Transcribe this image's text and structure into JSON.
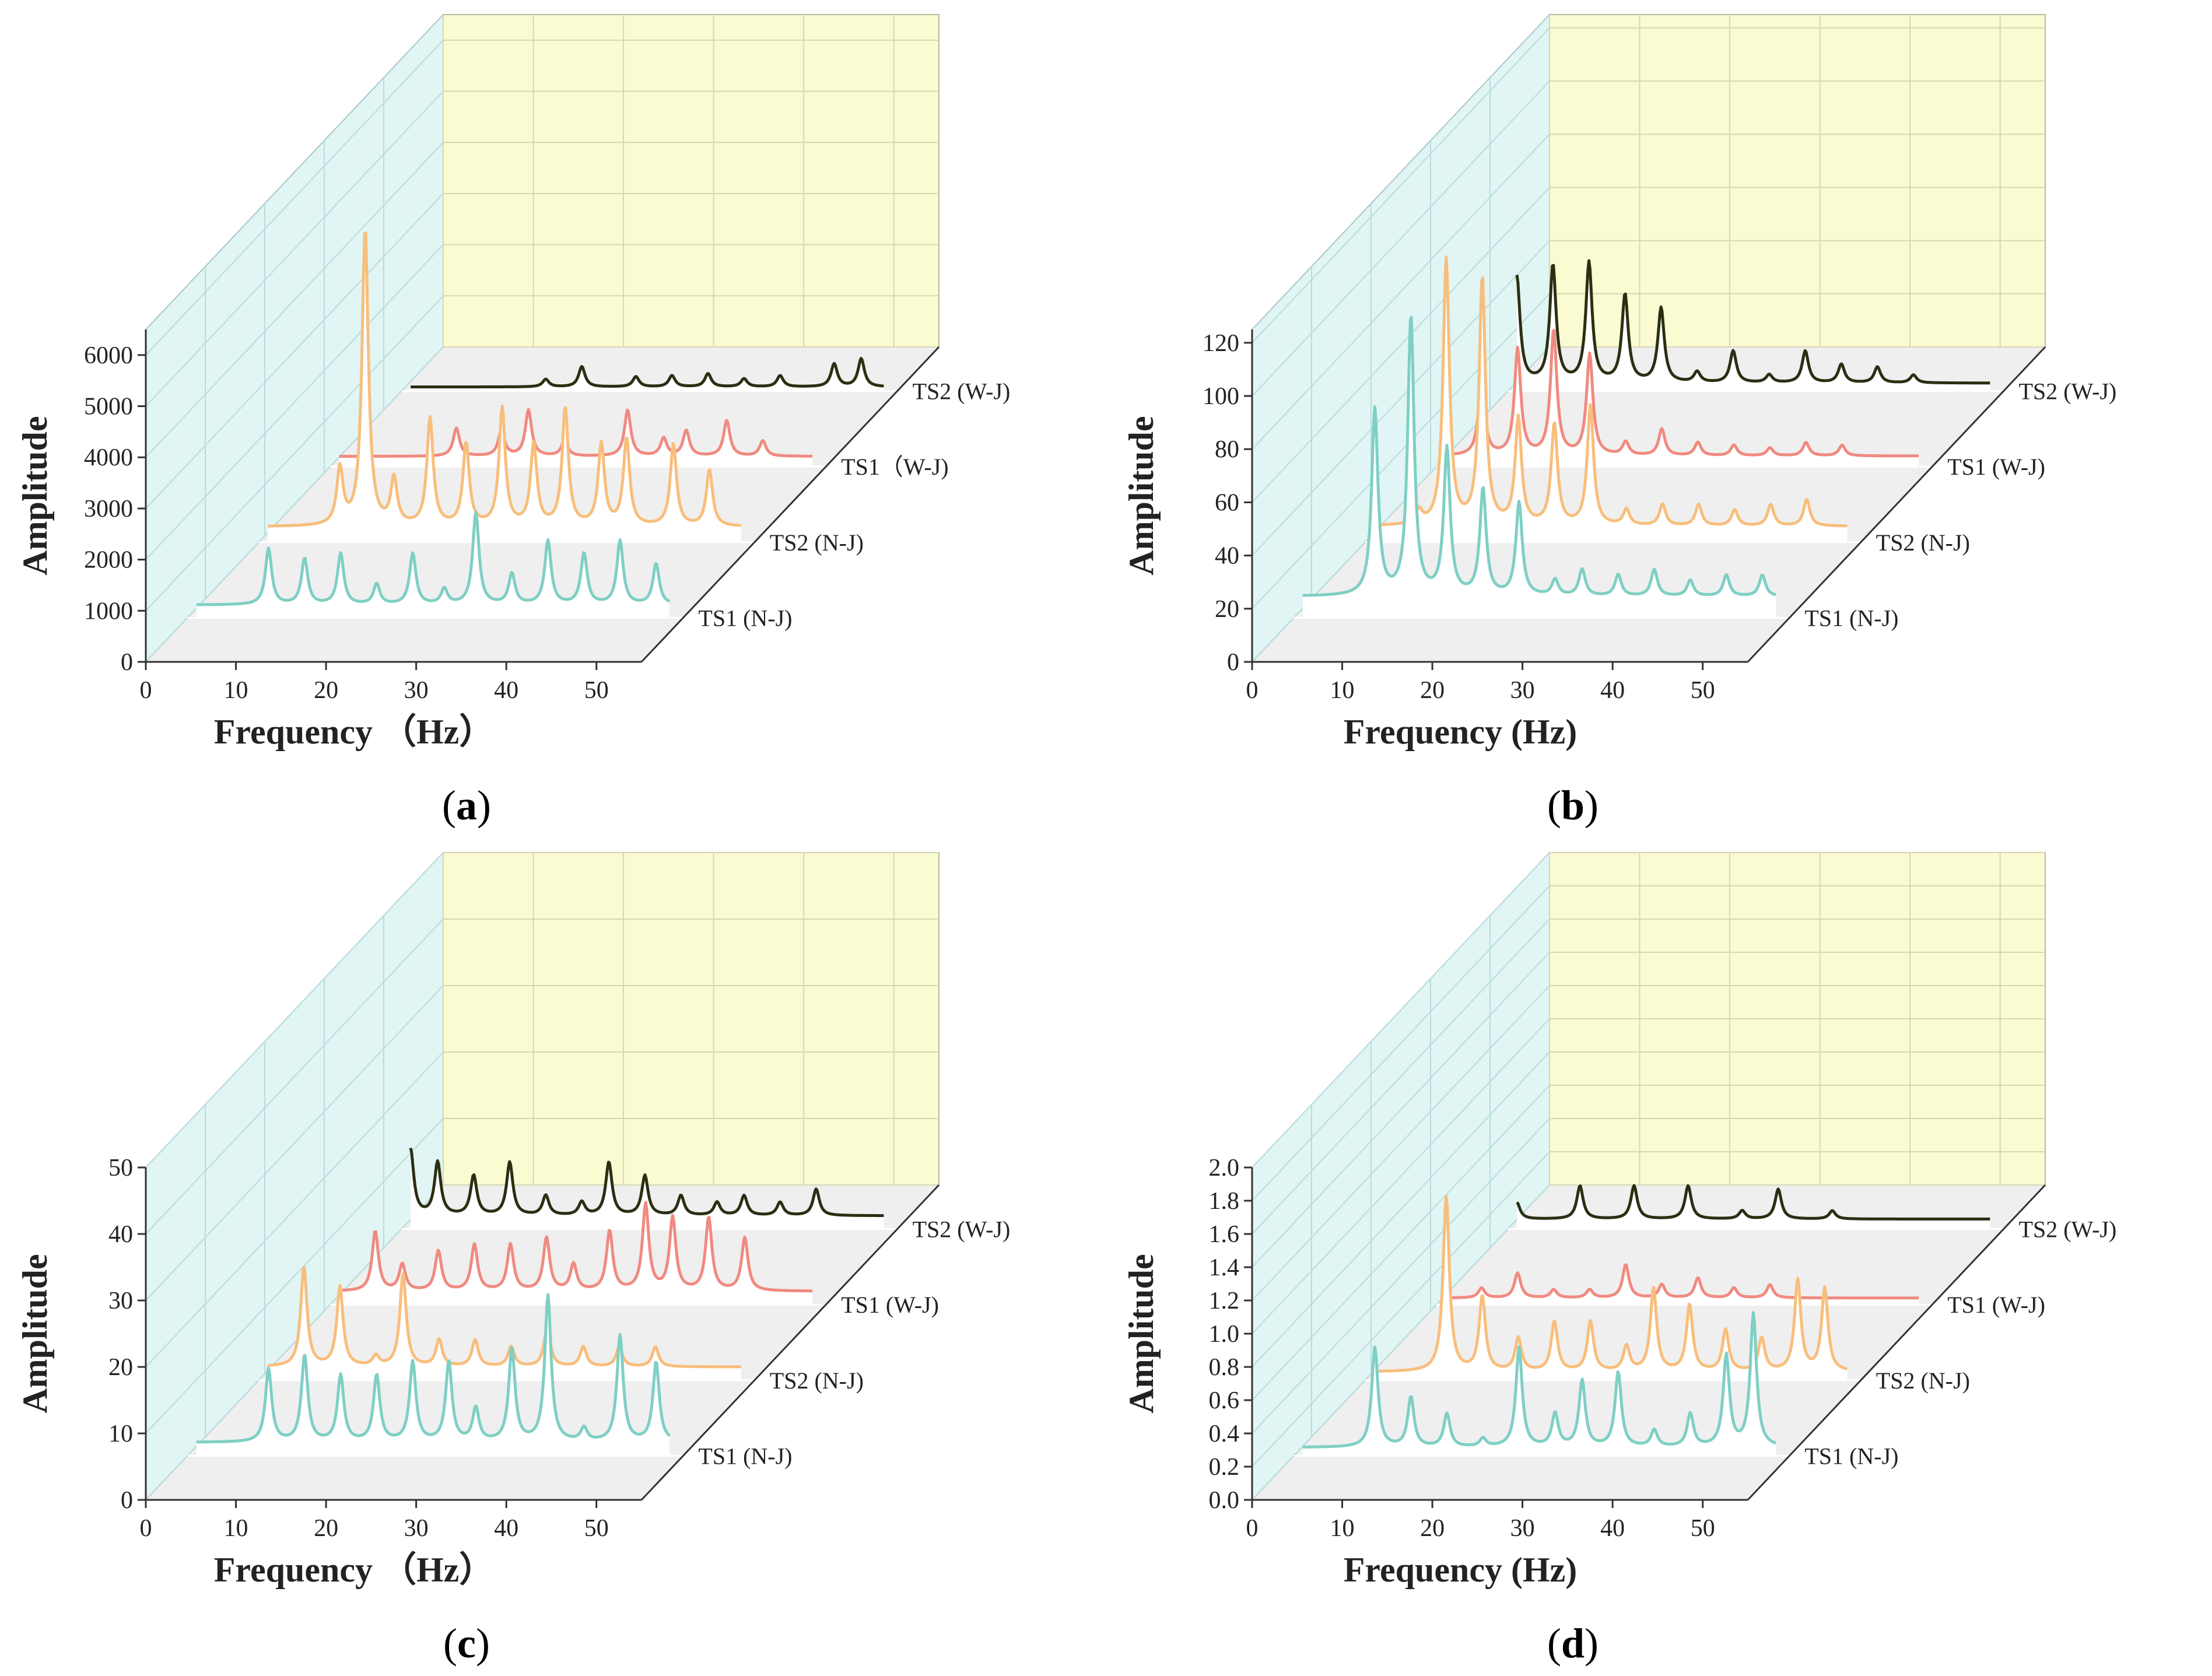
{
  "chart_data": [
    {
      "type": "line",
      "panel_label": "a",
      "xlabel": "Frequency （Hz）",
      "ylabel": "Amplitude",
      "xticks": [
        0,
        10,
        20,
        30,
        40,
        50
      ],
      "yticks": [
        "0",
        "1000",
        "2000",
        "3000",
        "4000",
        "5000",
        "6000"
      ],
      "xlim": [
        0,
        55
      ],
      "ylim": [
        0,
        6500
      ],
      "series_labels": [
        "TS1 (N-J)",
        "TS2 (N-J)",
        "TS1（W-J)",
        "TS2 (W-J)"
      ],
      "series": [
        {
          "name": "TS1 (N-J)",
          "color": "#7ecfc4",
          "baseline": 250,
          "peaks": [
            [
              9,
              1100
            ],
            [
              13,
              900
            ],
            [
              17,
              1000
            ],
            [
              21,
              400
            ],
            [
              25,
              1000
            ],
            [
              28.5,
              300
            ],
            [
              32,
              1800
            ],
            [
              36,
              600
            ],
            [
              40,
              1250
            ],
            [
              44,
              1000
            ],
            [
              48,
              1250
            ],
            [
              52,
              800
            ]
          ]
        },
        {
          "name": "TS2 (N-J)",
          "color": "#f8be7c",
          "baseline": 300,
          "peaks": [
            [
              9,
              1100
            ],
            [
              11.8,
              5800
            ],
            [
              15,
              900
            ],
            [
              19,
              2100
            ],
            [
              23,
              1600
            ],
            [
              27,
              2300
            ],
            [
              30.5,
              1600
            ],
            [
              34,
              2300
            ],
            [
              38,
              1600
            ],
            [
              40.8,
              1700
            ],
            [
              46,
              1600
            ],
            [
              50,
              1100
            ]
          ]
        },
        {
          "name": "TS1（W-J)",
          "color": "#f08a80",
          "baseline": 200,
          "peaks": [
            [
              14,
              550
            ],
            [
              19,
              500
            ],
            [
              22,
              900
            ],
            [
              26,
              300
            ],
            [
              33,
              900
            ],
            [
              37,
              350
            ],
            [
              39.5,
              500
            ],
            [
              44,
              700
            ],
            [
              48,
              300
            ]
          ]
        },
        {
          "name": "TS2 (W-J)",
          "color": "#2b2f12",
          "baseline": 80,
          "peaks": [
            [
              16,
              150
            ],
            [
              20,
              400
            ],
            [
              26,
              200
            ],
            [
              30,
              220
            ],
            [
              34,
              260
            ],
            [
              38,
              160
            ],
            [
              42,
              220
            ],
            [
              48,
              450
            ],
            [
              51,
              550
            ]
          ]
        }
      ]
    },
    {
      "type": "line",
      "panel_label": "b",
      "xlabel": "Frequency (Hz)",
      "ylabel": "Amplitude",
      "xticks": [
        0,
        10,
        20,
        30,
        40,
        50
      ],
      "yticks": [
        "0",
        "20",
        "40",
        "60",
        "80",
        "100",
        "120"
      ],
      "xlim": [
        0,
        55
      ],
      "ylim": [
        0,
        125
      ],
      "series_labels": [
        "TS1 (N-J)",
        "TS2 (N-J)",
        "TS1 (W-J)",
        "TS2 (W-J)"
      ],
      "series": [
        {
          "name": "TS1 (N-J)",
          "color": "#7ecfc4",
          "baseline": 8,
          "peaks": [
            [
              9,
              70
            ],
            [
              13,
              105
            ],
            [
              17,
              55
            ],
            [
              21,
              40
            ],
            [
              25,
              35
            ],
            [
              29,
              6
            ],
            [
              32,
              10
            ],
            [
              36,
              8
            ],
            [
              40,
              10
            ],
            [
              44,
              6
            ],
            [
              48,
              8
            ],
            [
              52,
              8
            ]
          ]
        },
        {
          "name": "TS2 (N-J)",
          "color": "#f8be7c",
          "baseline": 6,
          "peaks": [
            [
              6,
              5
            ],
            [
              9,
              100
            ],
            [
              13,
              93
            ],
            [
              17,
              40
            ],
            [
              21,
              38
            ],
            [
              25,
              45
            ],
            [
              29,
              6
            ],
            [
              33,
              8
            ],
            [
              37,
              8
            ],
            [
              41,
              6
            ],
            [
              45,
              8
            ],
            [
              49,
              10
            ]
          ]
        },
        {
          "name": "TS1 (W-J)",
          "color": "#f08a80",
          "baseline": 4,
          "peaks": [
            [
              5,
              28
            ],
            [
              9,
              40
            ],
            [
              13,
              47
            ],
            [
              17,
              38
            ],
            [
              21,
              5
            ],
            [
              25,
              10
            ],
            [
              29,
              5
            ],
            [
              33,
              4
            ],
            [
              37,
              3
            ],
            [
              41,
              5
            ],
            [
              45,
              4
            ]
          ]
        },
        {
          "name": "TS2 (W-J)",
          "color": "#2b2f12",
          "baseline": 3,
          "peaks": [
            [
              1,
              40
            ],
            [
              5,
              44
            ],
            [
              9,
              45
            ],
            [
              13,
              33
            ],
            [
              17,
              28
            ],
            [
              21,
              4
            ],
            [
              25,
              12
            ],
            [
              29,
              3
            ],
            [
              33,
              12
            ],
            [
              37,
              7
            ],
            [
              41,
              6
            ],
            [
              45,
              3
            ]
          ]
        }
      ]
    },
    {
      "type": "line",
      "panel_label": "c",
      "xlabel": "Frequency （Hz）",
      "ylabel": "Amplitude",
      "xticks": [
        0,
        10,
        20,
        30,
        40,
        50
      ],
      "yticks": [
        "0",
        "10",
        "20",
        "30",
        "40",
        "50"
      ],
      "xlim": [
        0,
        55
      ],
      "ylim": [
        0,
        50
      ],
      "series_labels": [
        "TS1 (N-J)",
        "TS2 (N-J)",
        "TS1 (W-J)",
        "TS2 (W-J)"
      ],
      "series": [
        {
          "name": "TS1 (N-J)",
          "color": "#7ecfc4",
          "baseline": 2,
          "peaks": [
            [
              9,
              11
            ],
            [
              13,
              13
            ],
            [
              17,
              10
            ],
            [
              21,
              10
            ],
            [
              25,
              12
            ],
            [
              29,
              12
            ],
            [
              32,
              5
            ],
            [
              36,
              14
            ],
            [
              40,
              22
            ],
            [
              44,
              2
            ],
            [
              48,
              16
            ],
            [
              52,
              12
            ]
          ]
        },
        {
          "name": "TS2 (N-J)",
          "color": "#f8be7c",
          "baseline": 2,
          "peaks": [
            [
              5,
              15
            ],
            [
              9,
              12
            ],
            [
              13,
              1.5
            ],
            [
              16,
              14
            ],
            [
              20,
              4
            ],
            [
              24,
              4
            ],
            [
              28,
              3
            ],
            [
              32,
              6
            ],
            [
              36,
              3
            ],
            [
              40,
              3
            ],
            [
              44,
              3
            ]
          ]
        },
        {
          "name": "TS1 (W-J)",
          "color": "#f08a80",
          "baseline": 2,
          "peaks": [
            [
              5,
              9
            ],
            [
              8,
              4
            ],
            [
              12,
              6
            ],
            [
              16,
              7
            ],
            [
              20,
              7
            ],
            [
              24,
              8
            ],
            [
              27,
              4
            ],
            [
              31,
              9
            ],
            [
              35,
              13
            ],
            [
              38,
              11
            ],
            [
              42,
              11
            ],
            [
              46,
              8
            ]
          ]
        },
        {
          "name": "TS2 (W-J)",
          "color": "#2b2f12",
          "baseline": 2,
          "peaks": [
            [
              1,
              10
            ],
            [
              4,
              8
            ],
            [
              8,
              6
            ],
            [
              12,
              8
            ],
            [
              16,
              3
            ],
            [
              20,
              2
            ],
            [
              23,
              8
            ],
            [
              27,
              6
            ],
            [
              31,
              3
            ],
            [
              35,
              2
            ],
            [
              38,
              3
            ],
            [
              42,
              2
            ],
            [
              46,
              4
            ]
          ]
        }
      ]
    },
    {
      "type": "line",
      "panel_label": "d",
      "xlabel": "Frequency (Hz)",
      "ylabel": "Amplitude",
      "xticks": [
        0,
        10,
        20,
        30,
        40,
        50
      ],
      "yticks": [
        "0.0",
        "0.2",
        "0.4",
        "0.6",
        "0.8",
        "1.0",
        "1.2",
        "1.4",
        "1.6",
        "1.8",
        "2.0"
      ],
      "xlim": [
        0,
        55
      ],
      "ylim": [
        0,
        2.0
      ],
      "series_labels": [
        "TS1 (N-J)",
        "TS2 (N-J)",
        "TS1 (W-J)",
        "TS2 (W-J)"
      ],
      "series": [
        {
          "name": "TS1 (N-J)",
          "color": "#7ecfc4",
          "baseline": 0.05,
          "peaks": [
            [
              9,
              0.6
            ],
            [
              13,
              0.3
            ],
            [
              17,
              0.2
            ],
            [
              21,
              0.05
            ],
            [
              25,
              0.6
            ],
            [
              29,
              0.2
            ],
            [
              32,
              0.4
            ],
            [
              36,
              0.45
            ],
            [
              40,
              0.1
            ],
            [
              44,
              0.2
            ],
            [
              48,
              0.55
            ],
            [
              51,
              0.8
            ]
          ]
        },
        {
          "name": "TS2 (N-J)",
          "color": "#f8be7c",
          "baseline": 0.05,
          "peaks": [
            [
              9,
              1.05
            ],
            [
              13,
              0.45
            ],
            [
              17,
              0.2
            ],
            [
              21,
              0.3
            ],
            [
              25,
              0.3
            ],
            [
              29,
              0.15
            ],
            [
              32,
              0.5
            ],
            [
              36,
              0.4
            ],
            [
              40,
              0.25
            ],
            [
              44,
              0.2
            ],
            [
              48,
              0.55
            ],
            [
              51,
              0.5
            ]
          ]
        },
        {
          "name": "TS1 (W-J)",
          "color": "#f08a80",
          "baseline": 0.04,
          "peaks": [
            [
              5,
              0.06
            ],
            [
              9,
              0.15
            ],
            [
              13,
              0.05
            ],
            [
              17,
              0.05
            ],
            [
              21,
              0.2
            ],
            [
              25,
              0.08
            ],
            [
              29,
              0.12
            ],
            [
              33,
              0.06
            ],
            [
              37,
              0.08
            ]
          ]
        },
        {
          "name": "TS2 (W-J)",
          "color": "#2b2f12",
          "baseline": 0.06,
          "peaks": [
            [
              1,
              0.1
            ],
            [
              8,
              0.2
            ],
            [
              14,
              0.2
            ],
            [
              20,
              0.2
            ],
            [
              26,
              0.05
            ],
            [
              30,
              0.18
            ],
            [
              36,
              0.05
            ]
          ]
        }
      ]
    }
  ]
}
